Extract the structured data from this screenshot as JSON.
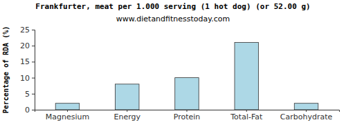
{
  "chart_data": {
    "type": "bar",
    "title": "Frankfurter, meat per 1.000 serving (1 hot dog) (or 52.00 g)",
    "subtitle": "www.dietandfitnesstoday.com",
    "y_label": "Percentage of RDA (%)",
    "categories": [
      "Magnesium",
      "Energy",
      "Protein",
      "Total-Fat",
      "Carbohydrate"
    ],
    "values": [
      2,
      8,
      10,
      21,
      2
    ],
    "color": "#add8e6",
    "ylim": [
      0,
      25
    ],
    "yticks": [
      0,
      5,
      10,
      15,
      20,
      25
    ],
    "grid": false
  }
}
